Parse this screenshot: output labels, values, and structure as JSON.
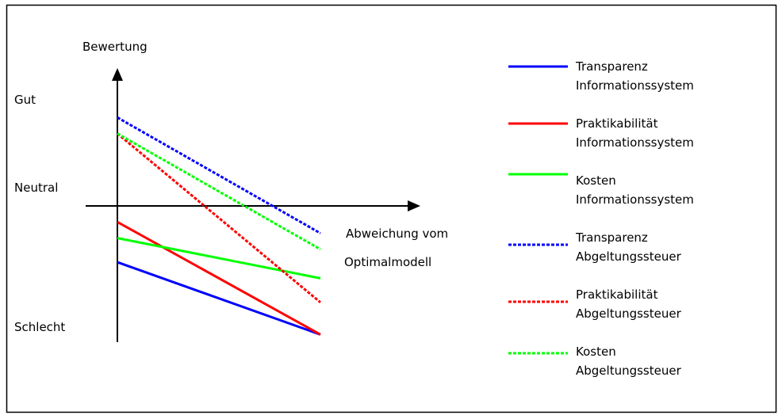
{
  "chart_data": {
    "type": "line",
    "xlabel": [
      "Abweichung vom",
      "Optimalmodell"
    ],
    "ylabel": "Bewertung",
    "ytick_labels": [
      "Gut",
      "Neutral",
      "Schlecht"
    ],
    "x": [
      0,
      1
    ],
    "ylim": [
      -1,
      1
    ],
    "grid": false,
    "legend_position": "right",
    "series": [
      {
        "legend": [
          "Transparenz",
          "Informationssystem"
        ],
        "values": [
          -0.35,
          -0.8
        ],
        "color": "#0000ff",
        "dash": "solid"
      },
      {
        "legend": [
          "Praktikabilität",
          "Informationssystem"
        ],
        "values": [
          -0.1,
          -0.8
        ],
        "color": "#ff0000",
        "dash": "solid"
      },
      {
        "legend": [
          "Kosten",
          "Informationssystem"
        ],
        "values": [
          -0.2,
          -0.45
        ],
        "color": "#00ff00",
        "dash": "solid"
      },
      {
        "legend": [
          "Transparenz",
          "Abgeltungssteuer"
        ],
        "values": [
          0.55,
          -0.17
        ],
        "color": "#0000ff",
        "dash": "dotted"
      },
      {
        "legend": [
          "Praktikabilität",
          "Abgeltungssteuer"
        ],
        "values": [
          0.45,
          -0.6
        ],
        "color": "#ff0000",
        "dash": "dotted"
      },
      {
        "legend": [
          "Kosten",
          "Abgeltungssteuer"
        ],
        "values": [
          0.45,
          -0.27
        ],
        "color": "#00ff00",
        "dash": "dotted"
      }
    ]
  }
}
